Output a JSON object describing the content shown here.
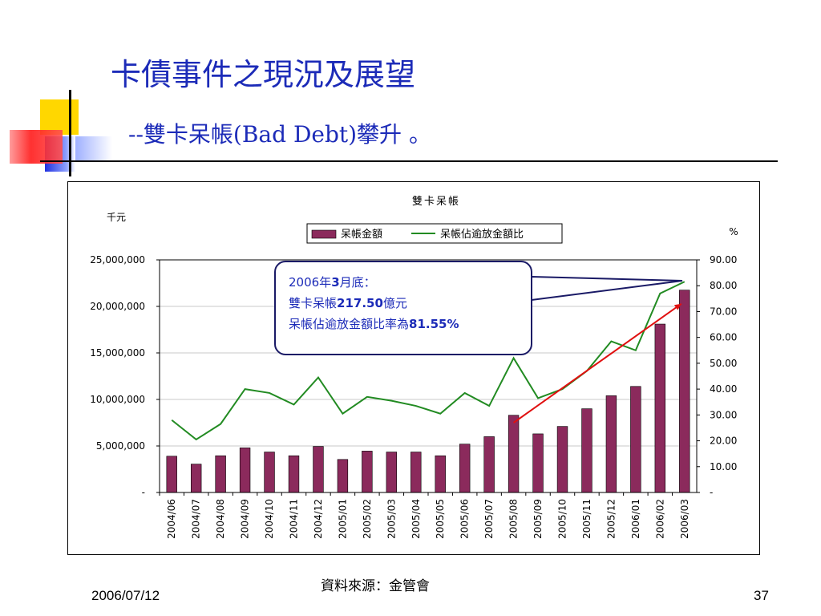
{
  "slide": {
    "title": "卡債事件之現況及展望",
    "subtitle": "--雙卡呆帳(Bad Debt)攀升 。",
    "source": "資料來源：金管會",
    "date": "2006/07/12",
    "page_number": "37"
  },
  "callout": {
    "line1_a": "2006年",
    "line1_b": "3",
    "line1_c": "月底：",
    "line2_a": "雙卡呆帳",
    "line2_b": "217.50",
    "line2_c": "億元",
    "line3_a": "呆帳佔逾放金額比率為",
    "line3_b": "81.55%"
  },
  "colors": {
    "title": "#1c2bb8",
    "bar": "#8b2a5c",
    "line": "#228b22",
    "trend_arrow": "#e01010",
    "callout_border": "#1a1a66"
  },
  "chart_data": {
    "type": "bar",
    "title": "雙卡呆帳",
    "ylabel_left": "千元",
    "ylabel_right": "%",
    "categories": [
      "2004/06",
      "2004/07",
      "2004/08",
      "2004/09",
      "2004/10",
      "2004/11",
      "2004/12",
      "2005/01",
      "2005/02",
      "2005/03",
      "2005/04",
      "2005/05",
      "2005/06",
      "2005/07",
      "2005/08",
      "2005/09",
      "2005/10",
      "2005/11",
      "2005/12",
      "2006/01",
      "2006/02",
      "2006/03"
    ],
    "series": [
      {
        "name": "呆帳金額",
        "type": "bar",
        "axis": "left",
        "values": [
          3900000,
          3050000,
          3950000,
          4800000,
          4350000,
          3950000,
          4950000,
          3550000,
          4450000,
          4350000,
          4350000,
          3950000,
          5200000,
          6000000,
          8300000,
          6300000,
          7100000,
          9000000,
          10400000,
          11400000,
          18100000,
          21750000
        ]
      },
      {
        "name": "呆帳佔逾放金額比",
        "type": "line",
        "axis": "right",
        "values": [
          28.0,
          20.5,
          26.5,
          40.0,
          38.5,
          34.0,
          44.5,
          30.5,
          37.0,
          35.5,
          33.5,
          30.5,
          38.5,
          33.5,
          52.0,
          36.5,
          40.0,
          47.0,
          58.5,
          55.0,
          77.0,
          81.55
        ]
      }
    ],
    "left_axis": {
      "min": 0,
      "max": 25000000,
      "ticks": [
        "-",
        "5,000,000",
        "10,000,000",
        "15,000,000",
        "20,000,000",
        "25,000,000"
      ]
    },
    "right_axis": {
      "min": 0,
      "max": 90,
      "ticks": [
        "-",
        "10.00",
        "20.00",
        "30.00",
        "40.00",
        "50.00",
        "60.00",
        "70.00",
        "80.00",
        "90.00"
      ]
    },
    "grid": true,
    "legend": "top-center",
    "annotations": [
      "trend-arrow 2005/08 to 2006/03"
    ]
  }
}
